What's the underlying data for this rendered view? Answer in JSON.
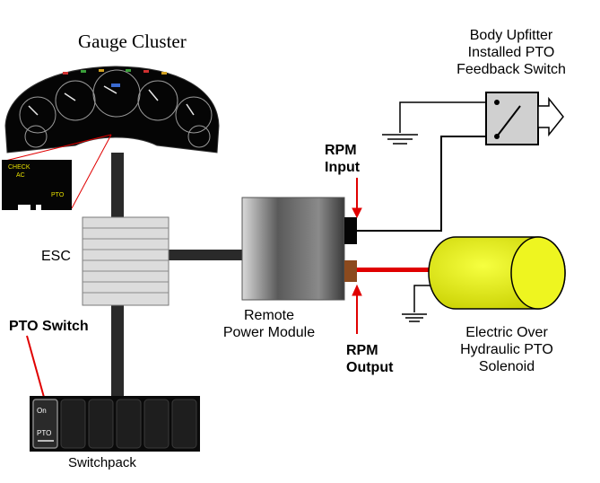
{
  "labels": {
    "gauge_cluster": "Gauge Cluster",
    "body_upfitter": [
      "Body Upfitter",
      "Installed PTO",
      "Feedback Switch"
    ],
    "rpm_input": [
      "RPM",
      "Input"
    ],
    "esc": "ESC",
    "pto_switch": "PTO Switch",
    "remote_power_module": [
      "Remote",
      "Power Module"
    ],
    "rpm_output": [
      "RPM",
      "Output"
    ],
    "eoh_pto_solenoid": [
      "Electric Over",
      "Hydraulic PTO",
      "Solenoid"
    ],
    "switchpack": "Switchpack"
  },
  "cluster_display": {
    "check": "CHECK",
    "ac": "AC",
    "pto": "PTO"
  },
  "switch_face": {
    "on": "On",
    "pto": "PTO"
  },
  "colors": {
    "wire_black": "#000000",
    "wire_red": "#e00000",
    "bus_gray": "#2a2a2a",
    "solenoid_yellow": "#e8ee00",
    "module_gray": "#7a7a7a",
    "esc_fill": "#dcdcdc",
    "rpm_output_terminal": "#8b4a1e"
  }
}
